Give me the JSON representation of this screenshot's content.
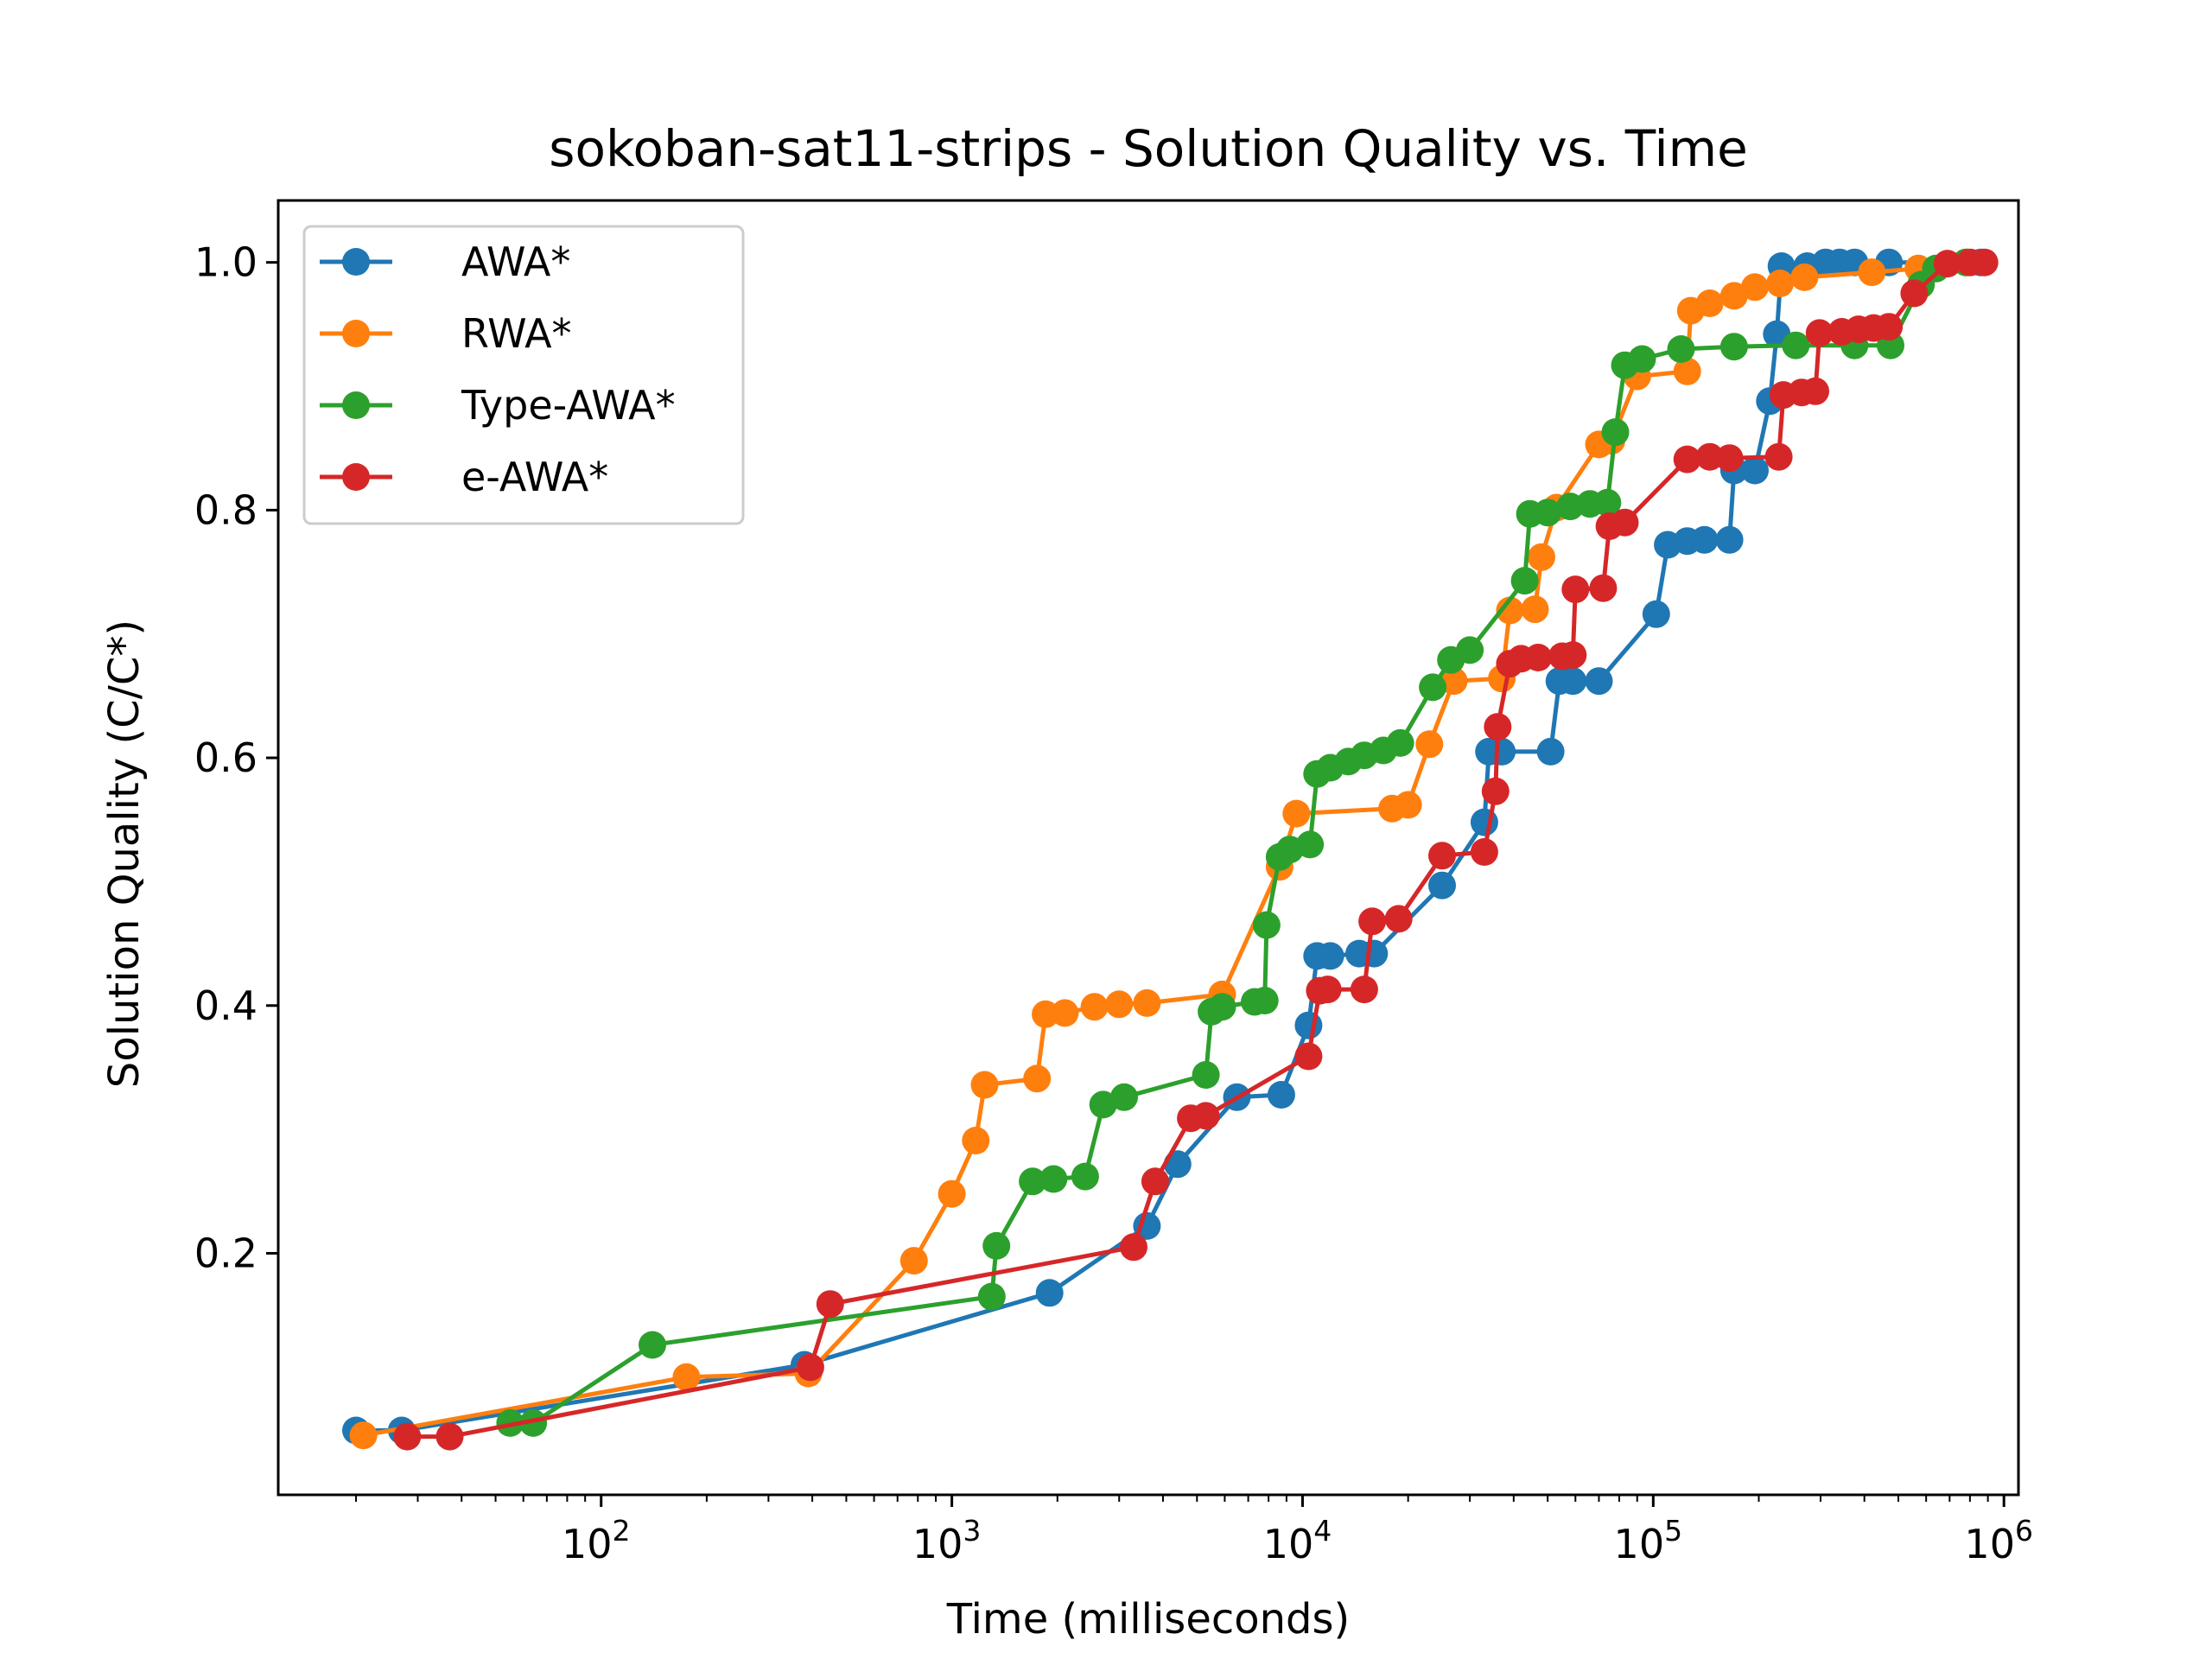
{
  "chart_data": {
    "type": "line",
    "title": "sokoban-sat11-strips - Solution Quality vs. Time",
    "xlabel": "Time (milliseconds)",
    "ylabel": "Solution Quality (C/C*)",
    "xscale": "log",
    "xlim": [
      12,
      1100000
    ],
    "ylim": [
      0.005,
      1.05
    ],
    "xticks": [
      {
        "value": 100,
        "base": "10",
        "exp": "2"
      },
      {
        "value": 1000,
        "base": "10",
        "exp": "3"
      },
      {
        "value": 10000,
        "base": "10",
        "exp": "4"
      },
      {
        "value": 100000,
        "base": "10",
        "exp": "5"
      },
      {
        "value": 1000000,
        "base": "10",
        "exp": "6"
      }
    ],
    "yticks": [
      {
        "value": 0.2,
        "label": "0.2"
      },
      {
        "value": 0.4,
        "label": "0.4"
      },
      {
        "value": 0.6,
        "label": "0.6"
      },
      {
        "value": 0.8,
        "label": "0.8"
      },
      {
        "value": 1.0,
        "label": "1.0"
      }
    ],
    "grid": false,
    "legend_position": "top-left",
    "series": [
      {
        "name": "AWA*",
        "color": "#1f77b4",
        "points": [
          [
            20,
            0.057
          ],
          [
            27,
            0.057
          ],
          [
            380,
            0.11
          ],
          [
            1900,
            0.168
          ],
          [
            3600,
            0.222
          ],
          [
            4400,
            0.272
          ],
          [
            6500,
            0.326
          ],
          [
            8700,
            0.328
          ],
          [
            10400,
            0.384
          ],
          [
            11000,
            0.44
          ],
          [
            12000,
            0.44
          ],
          [
            14500,
            0.442
          ],
          [
            16000,
            0.442
          ],
          [
            25000,
            0.497
          ],
          [
            33000,
            0.548
          ],
          [
            34000,
            0.605
          ],
          [
            37000,
            0.605
          ],
          [
            51000,
            0.605
          ],
          [
            54000,
            0.662
          ],
          [
            59000,
            0.662
          ],
          [
            70000,
            0.662
          ],
          [
            102000,
            0.716
          ],
          [
            110000,
            0.772
          ],
          [
            125000,
            0.775
          ],
          [
            140000,
            0.776
          ],
          [
            165000,
            0.776
          ],
          [
            170000,
            0.832
          ],
          [
            195000,
            0.832
          ],
          [
            215000,
            0.888
          ],
          [
            225000,
            0.942
          ],
          [
            232000,
            0.997
          ],
          [
            275000,
            0.997
          ],
          [
            310000,
            1.0
          ],
          [
            340000,
            1.0
          ],
          [
            375000,
            1.0
          ],
          [
            470000,
            1.0
          ],
          [
            860000,
            1.0
          ]
        ]
      },
      {
        "name": "RWA*",
        "color": "#ff7f0e",
        "points": [
          [
            21,
            0.053
          ],
          [
            175,
            0.1
          ],
          [
            390,
            0.103
          ],
          [
            780,
            0.194
          ],
          [
            1000,
            0.248
          ],
          [
            1170,
            0.291
          ],
          [
            1240,
            0.336
          ],
          [
            1750,
            0.341
          ],
          [
            1850,
            0.393
          ],
          [
            2100,
            0.394
          ],
          [
            2550,
            0.399
          ],
          [
            3000,
            0.401
          ],
          [
            3600,
            0.402
          ],
          [
            5900,
            0.409
          ],
          [
            8600,
            0.512
          ],
          [
            9600,
            0.555
          ],
          [
            18000,
            0.559
          ],
          [
            20000,
            0.562
          ],
          [
            23000,
            0.611
          ],
          [
            27000,
            0.662
          ],
          [
            37000,
            0.664
          ],
          [
            39000,
            0.719
          ],
          [
            46000,
            0.72
          ],
          [
            48000,
            0.762
          ],
          [
            53000,
            0.802
          ],
          [
            70000,
            0.853
          ],
          [
            76000,
            0.856
          ],
          [
            90000,
            0.908
          ],
          [
            125000,
            0.912
          ],
          [
            128000,
            0.961
          ],
          [
            145000,
            0.967
          ],
          [
            170000,
            0.973
          ],
          [
            195000,
            0.98
          ],
          [
            230000,
            0.983
          ],
          [
            270000,
            0.988
          ],
          [
            420000,
            0.992
          ],
          [
            570000,
            0.995
          ],
          [
            780000,
            1.0
          ]
        ]
      },
      {
        "name": "Type-AWA*",
        "color": "#2ca02c",
        "points": [
          [
            55,
            0.063
          ],
          [
            64,
            0.063
          ],
          [
            140,
            0.126
          ],
          [
            1300,
            0.165
          ],
          [
            1340,
            0.206
          ],
          [
            1700,
            0.258
          ],
          [
            1950,
            0.26
          ],
          [
            2400,
            0.262
          ],
          [
            2700,
            0.32
          ],
          [
            3100,
            0.326
          ],
          [
            5300,
            0.344
          ],
          [
            5500,
            0.395
          ],
          [
            5900,
            0.399
          ],
          [
            7300,
            0.403
          ],
          [
            7800,
            0.404
          ],
          [
            7900,
            0.465
          ],
          [
            8600,
            0.52
          ],
          [
            9200,
            0.526
          ],
          [
            10500,
            0.53
          ],
          [
            11000,
            0.587
          ],
          [
            12000,
            0.592
          ],
          [
            13500,
            0.597
          ],
          [
            15000,
            0.602
          ],
          [
            17000,
            0.606
          ],
          [
            19000,
            0.612
          ],
          [
            23500,
            0.657
          ],
          [
            26500,
            0.679
          ],
          [
            30000,
            0.687
          ],
          [
            43000,
            0.743
          ],
          [
            44500,
            0.797
          ],
          [
            50000,
            0.798
          ],
          [
            58000,
            0.803
          ],
          [
            66000,
            0.805
          ],
          [
            74000,
            0.806
          ],
          [
            78000,
            0.863
          ],
          [
            83000,
            0.917
          ],
          [
            93000,
            0.922
          ],
          [
            120000,
            0.93
          ],
          [
            170000,
            0.932
          ],
          [
            255000,
            0.933
          ],
          [
            375000,
            0.933
          ],
          [
            475000,
            0.933
          ],
          [
            580000,
            0.982
          ],
          [
            640000,
            0.995
          ],
          [
            780000,
            1.0
          ]
        ]
      },
      {
        "name": "e-AWA*",
        "color": "#d62728",
        "points": [
          [
            28,
            0.052
          ],
          [
            37,
            0.052
          ],
          [
            395,
            0.108
          ],
          [
            450,
            0.159
          ],
          [
            3300,
            0.205
          ],
          [
            3800,
            0.258
          ],
          [
            4800,
            0.309
          ],
          [
            5300,
            0.311
          ],
          [
            10400,
            0.359
          ],
          [
            11200,
            0.412
          ],
          [
            11800,
            0.413
          ],
          [
            15000,
            0.413
          ],
          [
            15800,
            0.468
          ],
          [
            18800,
            0.47
          ],
          [
            25000,
            0.521
          ],
          [
            33000,
            0.524
          ],
          [
            35500,
            0.573
          ],
          [
            36000,
            0.625
          ],
          [
            39000,
            0.676
          ],
          [
            42000,
            0.68
          ],
          [
            47000,
            0.681
          ],
          [
            55000,
            0.682
          ],
          [
            59000,
            0.683
          ],
          [
            60000,
            0.736
          ],
          [
            72000,
            0.737
          ],
          [
            75000,
            0.787
          ],
          [
            83000,
            0.79
          ],
          [
            125000,
            0.841
          ],
          [
            145000,
            0.843
          ],
          [
            165000,
            0.842
          ],
          [
            228000,
            0.843
          ],
          [
            235000,
            0.893
          ],
          [
            265000,
            0.895
          ],
          [
            290000,
            0.896
          ],
          [
            298000,
            0.943
          ],
          [
            345000,
            0.944
          ],
          [
            385000,
            0.946
          ],
          [
            425000,
            0.947
          ],
          [
            470000,
            0.948
          ],
          [
            555000,
            0.975
          ],
          [
            690000,
            0.999
          ],
          [
            800000,
            1.0
          ],
          [
            880000,
            1.0
          ]
        ]
      }
    ]
  }
}
